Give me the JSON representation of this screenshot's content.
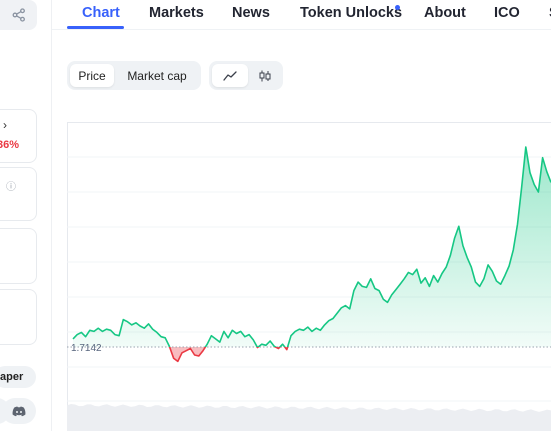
{
  "sidebar": {
    "chevron": "›",
    "percent_change": "36%",
    "info_icon": "ⓘ",
    "chip_label": "aper"
  },
  "nav": {
    "tabs": [
      {
        "label": "Chart",
        "active": true
      },
      {
        "label": "Markets"
      },
      {
        "label": "News"
      },
      {
        "label": "Token Unlocks",
        "has_dot": true
      },
      {
        "label": "About"
      },
      {
        "label": "ICO"
      },
      {
        "label": "S"
      }
    ]
  },
  "toggles": {
    "price_label": "Price",
    "market_cap_label": "Market cap",
    "line_icon": "line-chart-icon",
    "candle_icon": "candlestick-icon"
  },
  "chart": {
    "reference_price_label": "1.7142",
    "colors": {
      "up": "#16c784",
      "down": "#ea3943"
    }
  },
  "chart_data": {
    "type": "area",
    "reference_value": 1.7142,
    "values": [
      1.79,
      1.83,
      1.85,
      1.81,
      1.87,
      1.86,
      1.89,
      1.86,
      1.88,
      1.87,
      1.83,
      1.82,
      1.97,
      1.95,
      1.92,
      1.94,
      1.91,
      1.89,
      1.93,
      1.88,
      1.85,
      1.81,
      1.8,
      1.72,
      1.61,
      1.58,
      1.66,
      1.68,
      1.7,
      1.64,
      1.63,
      1.68,
      1.74,
      1.82,
      1.79,
      1.76,
      1.86,
      1.8,
      1.87,
      1.84,
      1.86,
      1.81,
      1.83,
      1.78,
      1.71,
      1.74,
      1.73,
      1.77,
      1.72,
      1.7,
      1.74,
      1.69,
      1.82,
      1.86,
      1.88,
      1.87,
      1.9,
      1.86,
      1.89,
      1.87,
      1.92,
      1.96,
      1.98,
      2.03,
      2.08,
      2.1,
      2.07,
      2.24,
      2.32,
      2.28,
      2.27,
      2.35,
      2.26,
      2.24,
      2.16,
      2.13,
      2.2,
      2.25,
      2.3,
      2.35,
      2.41,
      2.39,
      2.44,
      2.31,
      2.36,
      2.28,
      2.38,
      2.32,
      2.4,
      2.46,
      2.57,
      2.73,
      2.84,
      2.66,
      2.55,
      2.46,
      2.32,
      2.28,
      2.35,
      2.48,
      2.42,
      2.33,
      2.3,
      2.38,
      2.47,
      2.62,
      2.86,
      3.2,
      3.58,
      3.34,
      3.23,
      3.16,
      3.48,
      3.35,
      3.25
    ]
  }
}
